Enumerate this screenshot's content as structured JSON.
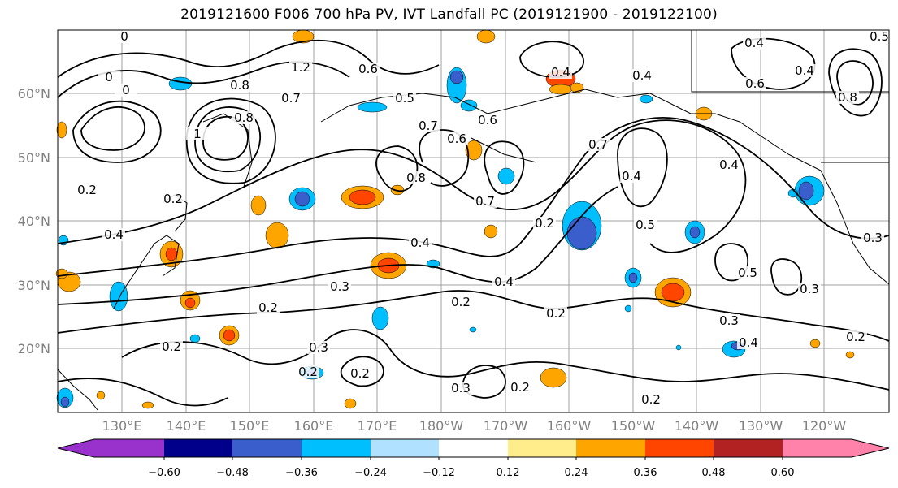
{
  "chart_data": {
    "type": "map",
    "title": "2019121600 F006 700 hPa PV, IVT Landfall PC (2019121900 - 2019122100)",
    "lat_ticks": [
      "20°N",
      "30°N",
      "40°N",
      "50°N",
      "60°N"
    ],
    "lon_ticks": [
      "130°E",
      "140°E",
      "150°E",
      "160°E",
      "170°E",
      "180°W",
      "170°W",
      "160°W",
      "150°W",
      "140°W",
      "130°W",
      "120°W"
    ],
    "grid": true,
    "colorbar": {
      "ticks": [
        "−0.60",
        "−0.48",
        "−0.36",
        "−0.24",
        "−0.12",
        "0.12",
        "0.24",
        "0.36",
        "0.48",
        "0.60"
      ],
      "colors": [
        "#9932cc",
        "#00008b",
        "#3a5fcd",
        "#00bfff",
        "#b0e2ff",
        "#ffffff",
        "#ffec8b",
        "#ffa500",
        "#ff4500",
        "#b22222",
        "#ff82ab"
      ],
      "extend": "both"
    },
    "contour_labels": [
      "0.2",
      "0.3",
      "0.4",
      "0.5",
      "0.6",
      "0.7",
      "0.8",
      "1",
      "1.2"
    ],
    "colors": {
      "contour": "#000000",
      "grid": "#a0a0a0",
      "axis_label": "#808080"
    }
  }
}
